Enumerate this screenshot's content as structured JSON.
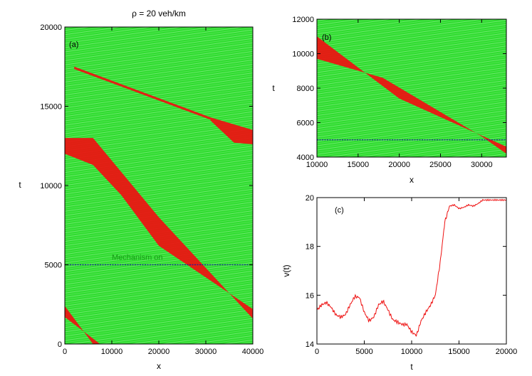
{
  "chart_data": [
    {
      "id": "a",
      "type": "heatmap",
      "title": "ρ = 20 veh/km",
      "panel_label": "(a)",
      "xlabel": "x",
      "ylabel": "t",
      "xlim": [
        0,
        40000
      ],
      "ylim": [
        0,
        20000
      ],
      "xticks": [
        0,
        10000,
        20000,
        30000,
        40000
      ],
      "yticks": [
        0,
        5000,
        10000,
        15000,
        20000
      ],
      "annotation": "Mechanism on",
      "mechanism_t": 5000,
      "background_color": "#22dd22",
      "jam_color": "#ee1111",
      "line_color": "#1a1aa0",
      "jam_bands": [
        {
          "polygon": [
            [
              0,
              2400
            ],
            [
              0,
              1700
            ],
            [
              7500,
              0
            ],
            [
              6000,
              0
            ]
          ]
        },
        {
          "polygon": [
            [
              0,
              13000
            ],
            [
              6000,
              13000
            ],
            [
              20000,
              8000
            ],
            [
              40000,
              1600
            ],
            [
              40000,
              2200
            ],
            [
              20000,
              6200
            ],
            [
              12000,
              9400
            ],
            [
              6000,
              11300
            ],
            [
              0,
              12000
            ]
          ]
        },
        {
          "polygon": [
            [
              2000,
              17500
            ],
            [
              31000,
              14300
            ],
            [
              31000,
              14150
            ],
            [
              2000,
              17350
            ]
          ]
        },
        {
          "polygon": [
            [
              31000,
              14300
            ],
            [
              40000,
              13500
            ],
            [
              40000,
              12600
            ],
            [
              36000,
              12700
            ],
            [
              31000,
              14100
            ]
          ]
        }
      ]
    },
    {
      "id": "b",
      "type": "heatmap",
      "panel_label": "(b)",
      "xlabel": "x",
      "ylabel": "t",
      "xlim": [
        10000,
        33000
      ],
      "ylim": [
        4000,
        12000
      ],
      "xticks": [
        10000,
        15000,
        20000,
        25000,
        30000
      ],
      "yticks": [
        4000,
        6000,
        8000,
        10000,
        12000
      ],
      "mechanism_t": 5000,
      "background_color": "#22dd22",
      "jam_color": "#ee1111",
      "line_color": "#1a1aa0",
      "jam_bands": [
        {
          "polygon": [
            [
              10000,
              11700
            ],
            [
              10000,
              9700
            ],
            [
              18000,
              8600
            ],
            [
              30000,
              5200
            ],
            [
              33000,
              4200
            ],
            [
              33000,
              4600
            ],
            [
              20000,
              7400
            ],
            [
              10000,
              11000
            ]
          ]
        }
      ]
    },
    {
      "id": "c",
      "type": "line",
      "panel_label": "(c)",
      "xlabel": "t",
      "ylabel": "v(t)",
      "xlim": [
        0,
        20000
      ],
      "ylim": [
        14,
        20
      ],
      "xticks": [
        0,
        5000,
        10000,
        15000,
        20000
      ],
      "yticks": [
        14,
        16,
        18,
        20
      ],
      "color": "#ee1111",
      "series": [
        {
          "name": "v(t)",
          "x": [
            0,
            500,
            1000,
            1500,
            2000,
            2500,
            3000,
            3500,
            4000,
            4500,
            5000,
            5500,
            6000,
            6500,
            7000,
            7500,
            8000,
            8500,
            9000,
            9500,
            10000,
            10500,
            11000,
            11500,
            12000,
            12500,
            13000,
            13500,
            14000,
            14500,
            15000,
            15500,
            16000,
            16500,
            17000,
            17500,
            18000,
            18500,
            19000,
            19500,
            20000
          ],
          "y": [
            15.4,
            15.6,
            15.7,
            15.5,
            15.2,
            15.1,
            15.2,
            15.6,
            15.95,
            15.9,
            15.3,
            14.95,
            15.1,
            15.6,
            15.75,
            15.4,
            15.0,
            14.9,
            14.8,
            14.8,
            14.5,
            14.35,
            14.95,
            15.3,
            15.6,
            16.0,
            17.3,
            19.0,
            19.65,
            19.7,
            19.55,
            19.6,
            19.7,
            19.65,
            19.75,
            19.9,
            19.9,
            19.9,
            19.9,
            19.9,
            19.9
          ]
        }
      ]
    }
  ]
}
